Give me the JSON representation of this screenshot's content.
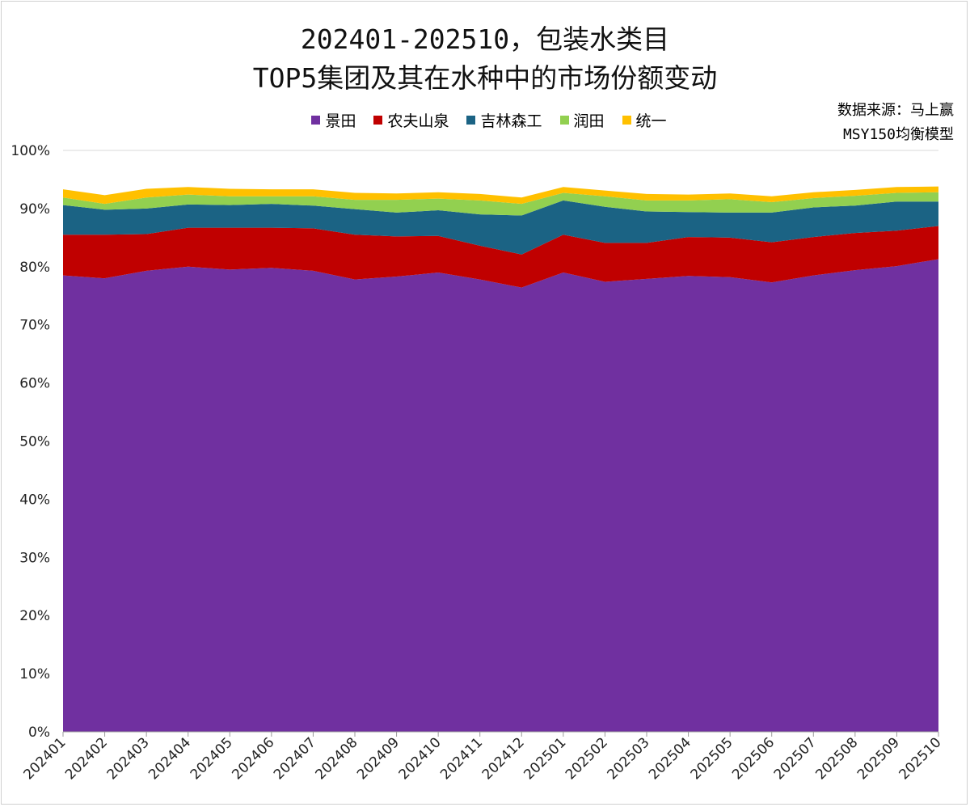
{
  "title_line1": "202401-202510，包装水类目",
  "title_line2": "TOP5集团及其在水种中的市场份额变动",
  "source_line1": "数据来源：马上赢",
  "source_line2": "MSY150均衡模型",
  "chart_data": {
    "type": "area",
    "stacked": true,
    "title": "202401-202510，包装水类目 TOP5集团及其在水种中的市场份额变动",
    "legend_position": "top",
    "ylim": [
      0,
      100
    ],
    "yticks": [
      "0%",
      "10%",
      "20%",
      "30%",
      "40%",
      "50%",
      "60%",
      "70%",
      "80%",
      "90%",
      "100%"
    ],
    "categories": [
      "202401",
      "202402",
      "202403",
      "202404",
      "202405",
      "202406",
      "202407",
      "202408",
      "202409",
      "202410",
      "202411",
      "202412",
      "202501",
      "202502",
      "202503",
      "202504",
      "202505",
      "202506",
      "202507",
      "202508",
      "202509",
      "202510"
    ],
    "series": [
      {
        "name": "景田",
        "color": "#7030A0",
        "values": [
          78.5,
          78.0,
          79.3,
          80.0,
          79.5,
          79.8,
          79.3,
          77.8,
          78.3,
          79.0,
          77.8,
          76.4,
          79.0,
          77.4,
          77.9,
          78.4,
          78.2,
          77.3,
          78.5,
          79.4,
          80.1,
          81.3
        ]
      },
      {
        "name": "农夫山泉",
        "color": "#C00000",
        "values": [
          7.0,
          7.5,
          6.3,
          6.7,
          7.2,
          6.9,
          7.3,
          7.7,
          6.9,
          6.3,
          5.8,
          5.7,
          6.5,
          6.7,
          6.2,
          6.7,
          6.8,
          6.9,
          6.6,
          6.4,
          6.1,
          5.7
        ]
      },
      {
        "name": "吉林森工",
        "color": "#1B6384",
        "values": [
          5.1,
          4.3,
          4.4,
          4.0,
          3.9,
          4.1,
          3.9,
          4.4,
          4.1,
          4.4,
          5.4,
          6.7,
          5.9,
          6.2,
          5.4,
          4.3,
          4.3,
          5.1,
          5.1,
          4.7,
          5.0,
          4.2
        ]
      },
      {
        "name": "润田",
        "color": "#92D050",
        "values": [
          1.3,
          1.0,
          1.9,
          1.7,
          1.5,
          1.3,
          1.6,
          1.6,
          2.2,
          2.0,
          2.4,
          2.0,
          1.3,
          1.8,
          1.9,
          2.0,
          2.3,
          1.8,
          1.6,
          1.7,
          1.5,
          1.6
        ]
      },
      {
        "name": "统一",
        "color": "#FFC000",
        "values": [
          1.4,
          1.5,
          1.5,
          1.3,
          1.3,
          1.2,
          1.2,
          1.2,
          1.1,
          1.1,
          1.1,
          1.1,
          1.0,
          1.0,
          1.1,
          1.0,
          1.0,
          1.0,
          1.0,
          1.0,
          1.0,
          1.0
        ]
      }
    ]
  }
}
